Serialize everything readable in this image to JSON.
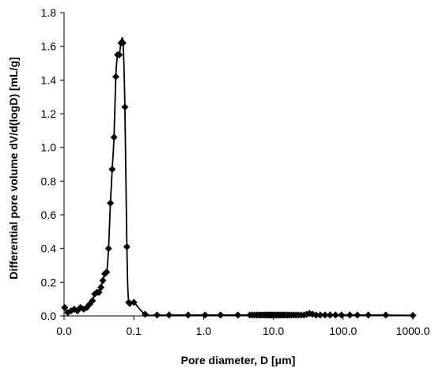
{
  "chart_data": {
    "type": "scatter",
    "xscale": "log",
    "xlabel": "Pore diameter, D [μm]",
    "ylabel": "Differential pore volume dV/d(logD) [mL/g]",
    "x_ticks": [
      0.01,
      0.1,
      1,
      10,
      100,
      1000
    ],
    "x_tick_labels": [
      "0.0",
      "0.1",
      "1.0",
      "10.0",
      "100.0",
      "1000.0"
    ],
    "y_ticks": [
      0,
      0.2,
      0.4,
      0.6,
      0.8,
      1.0,
      1.2,
      1.4,
      1.6,
      1.8
    ],
    "y_tick_labels": [
      "0.0",
      "0.2",
      "0.4",
      "0.6",
      "0.8",
      "1.0",
      "1.2",
      "1.4",
      "1.6",
      "1.8"
    ],
    "xlim": [
      0.01,
      1000
    ],
    "ylim": [
      0,
      1.8
    ],
    "grid": false,
    "series": [
      {
        "markers": "diamond",
        "color": "#000000",
        "x": [
          0.0102,
          0.0113,
          0.0126,
          0.014,
          0.0155,
          0.0172,
          0.0191,
          0.0212,
          0.0233,
          0.0255,
          0.0275,
          0.0296,
          0.0316,
          0.0338,
          0.036,
          0.0383,
          0.0408,
          0.0434,
          0.0462,
          0.049,
          0.052,
          0.0552,
          0.0585,
          0.062,
          0.0655,
          0.07,
          0.0745,
          0.0795,
          0.0845,
          0.1,
          0.145,
          0.215,
          0.32,
          0.6,
          1.05,
          1.75,
          3.1,
          4.6,
          5.0,
          5.4,
          5.8,
          6.2,
          6.6,
          7.0,
          7.4,
          7.8,
          8.2,
          8.6,
          9.0,
          9.4,
          9.8,
          10.4,
          11.0,
          11.6,
          12.2,
          12.8,
          13.5,
          14.2,
          15.0,
          16.0,
          17.0,
          18.2,
          19.5,
          21.0,
          22.8,
          25.0,
          27.5,
          30.0,
          33.0,
          36.5,
          41.0,
          47.0,
          55.0,
          65.0,
          78.0,
          95.0,
          125.0,
          160.0,
          230.0,
          410.0,
          1000.0
        ],
        "y": [
          0.05,
          0.02,
          0.03,
          0.04,
          0.03,
          0.05,
          0.04,
          0.05,
          0.07,
          0.09,
          0.13,
          0.14,
          0.14,
          0.17,
          0.21,
          0.25,
          0.26,
          0.4,
          0.67,
          0.87,
          1.06,
          1.42,
          1.55,
          1.55,
          1.62,
          1.62,
          1.24,
          0.41,
          0.08,
          0.08,
          0.01,
          0.005,
          0.005,
          0.005,
          0.005,
          0.005,
          0.005,
          0.005,
          0.005,
          0.005,
          0.005,
          0.005,
          0.005,
          0.005,
          0.005,
          0.005,
          0.005,
          0.005,
          0.005,
          0.005,
          0.005,
          0.005,
          0.005,
          0.005,
          0.005,
          0.005,
          0.005,
          0.005,
          0.005,
          0.005,
          0.005,
          0.005,
          0.005,
          0.005,
          0.005,
          0.005,
          0.005,
          0.01,
          0.015,
          0.01,
          0.005,
          0.005,
          0.005,
          0.005,
          0.005,
          0.005,
          0.005,
          0.005,
          0.005,
          0.005,
          0.003
        ]
      }
    ]
  }
}
